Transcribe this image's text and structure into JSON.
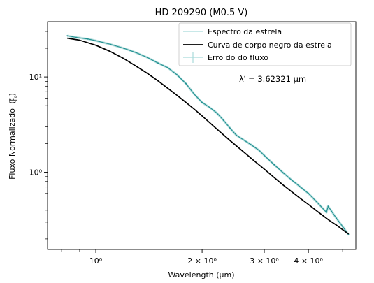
{
  "chart_data": {
    "type": "line",
    "title": "HD 209290 (M0.5 V)",
    "xlabel": "Wavelength (μm)",
    "ylabel": "Fluxo Normalizado",
    "ylabel_fraction": {
      "numerator": "F",
      "denominator": "F₀"
    },
    "xscale": "log",
    "yscale": "log",
    "xlim": [
      0.73,
      5.45
    ],
    "ylim": [
      0.155,
      38
    ],
    "grid": false,
    "legend_position": "top-right",
    "x_ticks": [
      {
        "value": 1.0,
        "label": "10⁰"
      },
      {
        "value": 2.0,
        "label": "2 × 10⁰"
      },
      {
        "value": 3.0,
        "label": "3 × 10⁰"
      },
      {
        "value": 4.0,
        "label": "4 × 10⁰"
      }
    ],
    "x_minor_ticks": [
      0.8,
      0.9,
      5.0
    ],
    "y_ticks": [
      {
        "value": 1.0,
        "label": "10⁰"
      },
      {
        "value": 10.0,
        "label": "10¹"
      }
    ],
    "y_minor_ticks": [
      0.2,
      0.3,
      0.4,
      0.5,
      0.6,
      0.7,
      0.8,
      0.9,
      2,
      3,
      4,
      5,
      6,
      7,
      8,
      9,
      20,
      30
    ],
    "annotation": "λ′ = 3.62321 μm",
    "series": [
      {
        "name": "Espectro da estrela",
        "color": "#1f8f8f",
        "x": [
          0.83,
          0.88,
          0.95,
          1.0,
          1.1,
          1.2,
          1.3,
          1.4,
          1.5,
          1.6,
          1.7,
          1.8,
          1.9,
          2.0,
          2.1,
          2.2,
          2.3,
          2.4,
          2.5,
          2.75,
          2.9,
          3.0,
          3.2,
          3.4,
          3.6,
          3.8,
          4.0,
          4.2,
          4.5,
          4.55,
          4.8,
          5.0,
          5.2
        ],
        "y": [
          27,
          26,
          25,
          24,
          22,
          20,
          18,
          16,
          14,
          12.5,
          10.5,
          8.5,
          6.6,
          5.4,
          4.8,
          4.2,
          3.5,
          2.9,
          2.45,
          1.95,
          1.7,
          1.5,
          1.2,
          0.98,
          0.82,
          0.7,
          0.6,
          0.5,
          0.38,
          0.44,
          0.33,
          0.27,
          0.22
        ]
      },
      {
        "name": "Curva de corpo negro da estrela",
        "color": "#000000",
        "x": [
          0.83,
          0.9,
          1.0,
          1.1,
          1.2,
          1.3,
          1.4,
          1.5,
          1.6,
          1.7,
          1.8,
          1.9,
          2.0,
          2.2,
          2.4,
          2.6,
          2.8,
          3.0,
          3.2,
          3.4,
          3.6,
          3.8,
          4.0,
          4.2,
          4.4,
          4.6,
          4.8,
          5.0,
          5.2
        ],
        "y": [
          25.5,
          24.3,
          21.5,
          18.5,
          15.6,
          13.0,
          10.9,
          9.1,
          7.6,
          6.4,
          5.4,
          4.6,
          3.9,
          2.85,
          2.15,
          1.68,
          1.33,
          1.08,
          0.88,
          0.73,
          0.62,
          0.53,
          0.46,
          0.4,
          0.35,
          0.31,
          0.28,
          0.25,
          0.225
        ]
      },
      {
        "name": "Erro do do fluxo",
        "color": "#9fd4d4"
      }
    ],
    "legend": [
      {
        "label": "Espectro da estrela",
        "color": "#a8dada",
        "style": "line"
      },
      {
        "label": "Curva de corpo negro da estrela",
        "color": "#000000",
        "style": "line"
      },
      {
        "label": "Erro do do fluxo",
        "color": "#a8dada",
        "style": "errorbar"
      }
    ]
  }
}
